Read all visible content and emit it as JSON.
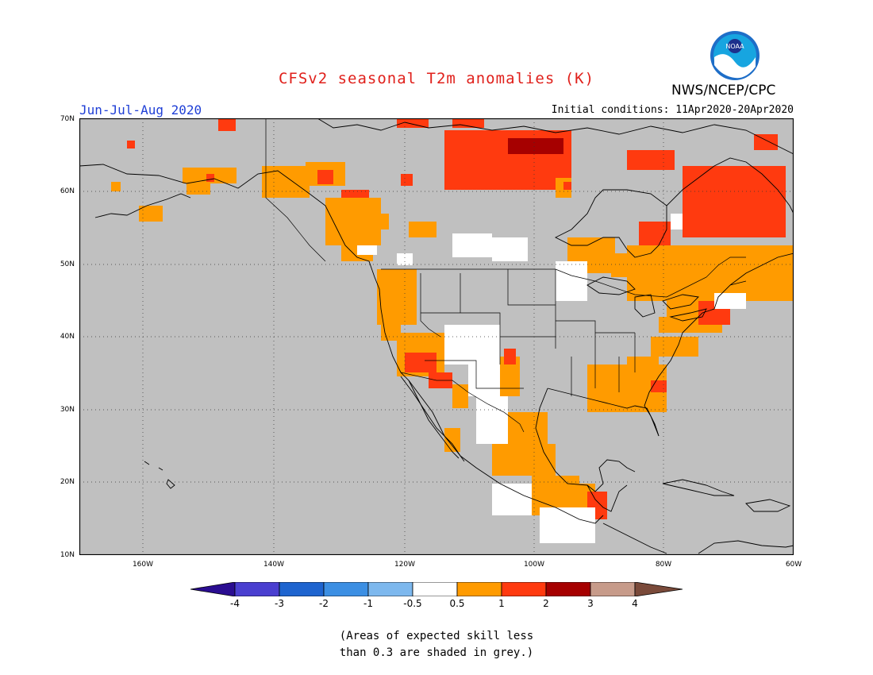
{
  "title": "CFSv2 seasonal T2m anomalies (K)",
  "agency": "NWS/NCEP/CPC",
  "logo_text": "NOAA",
  "period": "Jun-Jul-Aug 2020",
  "initial_conditions": "Initial conditions: 11Apr2020-20Apr2020",
  "lat_labels": [
    "70N",
    "60N",
    "50N",
    "40N",
    "30N",
    "20N",
    "10N"
  ],
  "lon_labels": [
    "160W",
    "140W",
    "120W",
    "100W",
    "80W",
    "60W"
  ],
  "colorbar": {
    "labels": [
      "-4",
      "-3",
      "-2",
      "-1",
      "-0.5",
      "0.5",
      "1",
      "2",
      "3",
      "4"
    ],
    "colors": [
      "#2a0d91",
      "#4a3fd0",
      "#1e64cf",
      "#3c8fe3",
      "#7db8ee",
      "#ffffff",
      "#ff9b00",
      "#ff3a0f",
      "#a60000",
      "#c79b8a",
      "#7a4a3a"
    ]
  },
  "colors": {
    "ocean_land_grey": "#c0c0c0",
    "white_cells": "#ffffff",
    "anom_0_5_1": "#ff9b00",
    "anom_1_2": "#ff3a0f",
    "anom_2_3": "#a60000",
    "title_red": "#e0201b",
    "period_blue": "#1f3fd6"
  },
  "note": [
    "(Areas of expected skill less",
    "than 0.3 are shaded in grey.)"
  ]
}
